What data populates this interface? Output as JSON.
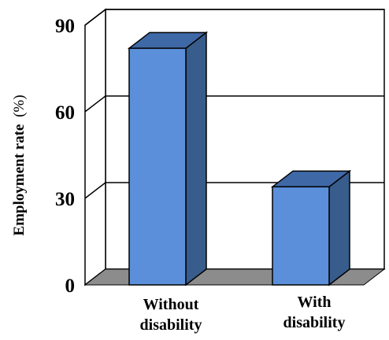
{
  "chart_data": {
    "type": "bar",
    "categories": [
      [
        "Without",
        "disability"
      ],
      [
        "With",
        "disability"
      ]
    ],
    "values": [
      82,
      34
    ],
    "ylabel": {
      "main": "Employment rate",
      "unit": "(%)"
    },
    "ylim": [
      0,
      90
    ],
    "yticks": [
      "0",
      "30",
      "60",
      "90"
    ],
    "tick_values": [
      0,
      30,
      60,
      90
    ],
    "grid": true,
    "legend": "none",
    "colors": {
      "bar_front": "#5b8fd9",
      "bar_side": "#385c8c",
      "bar_top": "#3f68a6",
      "floor": "#8c8c8c",
      "grid": "#000000"
    }
  }
}
